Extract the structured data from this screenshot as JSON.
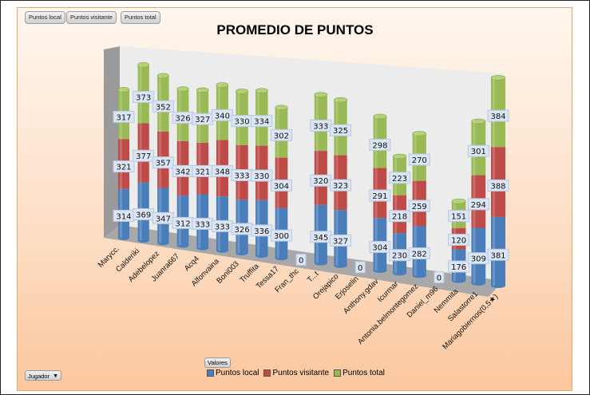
{
  "field_buttons": [
    "Puntos local",
    "Puntos visitante",
    "Puntos total"
  ],
  "filter_button": {
    "label": "Jugador",
    "icon": "dropdown-arrow"
  },
  "legend_button": "Valores",
  "chart_data": {
    "type": "bar",
    "stacked": true,
    "style": "3d-cylinder",
    "title": "PROMEDIO DE PUNTOS",
    "categories": [
      "Marycc.",
      "Calderiki",
      "Adebelopez",
      "Juanra667",
      "Acq4",
      "Alfonvaina",
      "Boni003",
      "Truffita",
      "Tessa17",
      "Fran_thc",
      "T...t",
      "Orejapico",
      "Erjoselin",
      "Anthony.gdav",
      "Icurmar",
      "Antonia.belmontegomez",
      "Daniel_m96",
      "Nemmita",
      "Salastorre1",
      "Mariagobiernos(0,5★)"
    ],
    "series": [
      {
        "name": "Puntos local",
        "color": "#4a7ebb",
        "values": [
          314,
          369,
          347,
          312,
          333,
          333,
          326,
          336,
          300,
          0,
          345,
          327,
          0,
          304,
          230,
          282,
          0,
          176,
          309,
          381
        ]
      },
      {
        "name": "Puntos visitante",
        "color": "#be4b48",
        "values": [
          321,
          377,
          357,
          342,
          321,
          348,
          333,
          330,
          304,
          0,
          320,
          323,
          0,
          291,
          218,
          259,
          0,
          120,
          294,
          388
        ]
      },
      {
        "name": "Puntos total",
        "color": "#98b954",
        "values": [
          317,
          373,
          352,
          326,
          327,
          340,
          330,
          334,
          302,
          0,
          333,
          325,
          0,
          298,
          223,
          270,
          0,
          151,
          301,
          384
        ]
      }
    ],
    "legend_position": "bottom",
    "data_labels": true,
    "grid": false
  }
}
